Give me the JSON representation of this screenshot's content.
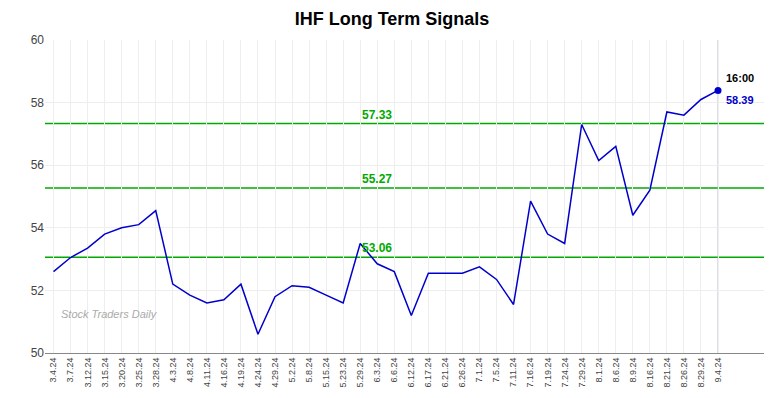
{
  "chart_data": {
    "type": "line",
    "title": "IHF Long Term Signals",
    "categories": [
      "3.4.24",
      "3.7.24",
      "3.12.24",
      "3.15.24",
      "3.20.24",
      "3.25.24",
      "3.28.24",
      "4.3.24",
      "4.8.24",
      "4.11.24",
      "4.16.24",
      "4.19.24",
      "4.24.24",
      "4.29.24",
      "5.2.24",
      "5.8.24",
      "5.15.24",
      "5.23.24",
      "5.29.24",
      "6.3.24",
      "6.6.24",
      "6.12.24",
      "6.17.24",
      "6.21.24",
      "6.26.24",
      "7.1.24",
      "7.5.24",
      "7.11.24",
      "7.16.24",
      "7.19.24",
      "7.24.24",
      "7.29.24",
      "8.1.24",
      "8.6.24",
      "8.9.24",
      "8.16.24",
      "8.21.24",
      "8.26.24",
      "8.29.24",
      "9.4.24"
    ],
    "values": [
      52.6,
      53.05,
      53.35,
      53.8,
      54.0,
      54.1,
      54.55,
      52.2,
      51.85,
      51.6,
      51.7,
      52.2,
      50.6,
      51.8,
      52.15,
      52.1,
      51.85,
      51.6,
      53.5,
      52.85,
      52.6,
      51.2,
      52.55,
      52.55,
      52.55,
      52.75,
      52.35,
      51.55,
      54.85,
      53.8,
      53.5,
      57.3,
      56.15,
      56.6,
      54.4,
      55.2,
      57.7,
      57.6,
      58.1,
      58.39
    ],
    "color": "#0000cc",
    "hlines": [
      {
        "value": 53.06,
        "label": "53.06",
        "color": "#00aa00"
      },
      {
        "value": 55.27,
        "label": "55.27",
        "color": "#00aa00"
      },
      {
        "value": 57.33,
        "label": "57.33",
        "color": "#00aa00"
      }
    ],
    "annotations": [
      "16:00",
      "58.39"
    ],
    "watermark": "Stock Traders Daily",
    "ylim": [
      50,
      60
    ],
    "yticks": [
      50,
      52,
      54,
      56,
      58,
      60
    ],
    "grid": true
  }
}
